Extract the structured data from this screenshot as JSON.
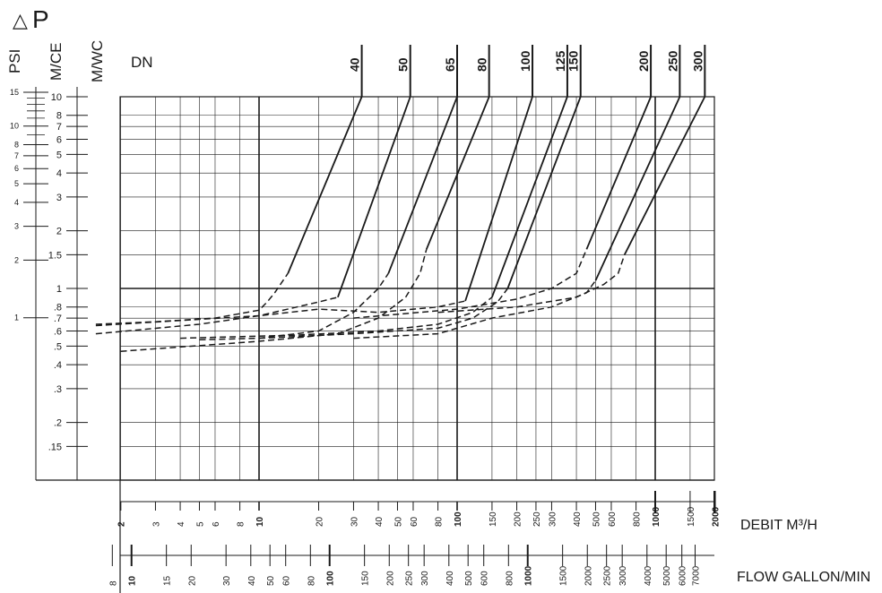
{
  "chart_data": {
    "type": "line",
    "title": "P",
    "title_symbol": "△",
    "dn_label": "DN",
    "grid": true,
    "xlabel_m3h": "DEBIT  M³/H",
    "xlabel_gpm": "FLOW GALLON/MIN",
    "xlim": [
      1.5,
      2000
    ],
    "ylim": [
      0.1,
      10
    ],
    "xscale": "log",
    "yscale": "log",
    "x_ticks_m3h": [
      "2",
      "3",
      "4",
      "5",
      "6",
      "8",
      "10",
      "20",
      "30",
      "40",
      "50",
      "60",
      "80",
      "100",
      "150",
      "200",
      "250",
      "300",
      "400",
      "500",
      "600",
      "800",
      "1000",
      "1500",
      "2000"
    ],
    "x_ticks_m3h_bold": [
      "2",
      "10",
      "100",
      "1000",
      "2000"
    ],
    "x_ticks_gpm": [
      "8",
      "10",
      "15",
      "20",
      "30",
      "40",
      "50",
      "60",
      "80",
      "100",
      "150",
      "200",
      "250",
      "300",
      "400",
      "500",
      "600",
      "800",
      "1000",
      "1500",
      "2000",
      "2500",
      "3000",
      "4000",
      "5000",
      "6000",
      "7000"
    ],
    "x_ticks_gpm_bold": [
      "10",
      "100",
      "1000"
    ],
    "axes": {
      "psi": {
        "label": "PSI",
        "ticks": [
          {
            "v": 15,
            "t": "15"
          },
          {
            "v": 10,
            "t": "10"
          },
          {
            "v": 8,
            "t": "8"
          },
          {
            "v": 7,
            "t": "7"
          },
          {
            "v": 6,
            "t": "6"
          },
          {
            "v": 5,
            "t": "5"
          },
          {
            "v": 4,
            "t": "4"
          },
          {
            "v": 3,
            "t": "3"
          },
          {
            "v": 2,
            "t": "2"
          },
          {
            "v": 1,
            "t": "1"
          }
        ]
      },
      "mce": {
        "label": "M/CE",
        "ticks": [
          {
            "v": 10,
            "t": "10"
          },
          {
            "v": 8,
            "t": "8"
          },
          {
            "v": 7,
            "t": "7"
          },
          {
            "v": 6,
            "t": "6"
          },
          {
            "v": 5,
            "t": "5"
          },
          {
            "v": 4,
            "t": "4"
          },
          {
            "v": 3,
            "t": "3"
          },
          {
            "v": 2,
            "t": "2"
          },
          {
            "v": 1.5,
            "t": "1.5"
          },
          {
            "v": 1,
            "t": "1"
          },
          {
            "v": 0.8,
            "t": ".8"
          },
          {
            "v": 0.7,
            "t": ".7"
          },
          {
            "v": 0.6,
            "t": ".6"
          },
          {
            "v": 0.5,
            "t": ".5"
          },
          {
            "v": 0.4,
            "t": ".4"
          },
          {
            "v": 0.3,
            "t": ".3"
          },
          {
            "v": 0.2,
            "t": ".2"
          },
          {
            "v": 0.15,
            "t": ".15"
          }
        ]
      },
      "mwc": {
        "label": "M/WC"
      }
    },
    "series": [
      {
        "name": "40",
        "dashed": [
          [
            1.5,
            0.65
          ],
          [
            3,
            0.67
          ],
          [
            6,
            0.7
          ],
          [
            10,
            0.77
          ],
          [
            11,
            0.85
          ],
          [
            12,
            0.95
          ],
          [
            14,
            1.2
          ]
        ],
        "solid": [
          [
            14,
            1.2
          ],
          [
            33,
            10
          ]
        ]
      },
      {
        "name": "50",
        "dashed": [
          [
            1.5,
            0.64
          ],
          [
            5,
            0.69
          ],
          [
            10,
            0.72
          ],
          [
            20,
            0.85
          ],
          [
            25,
            0.9
          ]
        ],
        "solid": [
          [
            25,
            0.9
          ],
          [
            58,
            10
          ]
        ]
      },
      {
        "name": "65",
        "dashed": [
          [
            5,
            0.54
          ],
          [
            10,
            0.55
          ],
          [
            20,
            0.6
          ],
          [
            30,
            0.75
          ],
          [
            40,
            1.0
          ],
          [
            45,
            1.2
          ]
        ],
        "solid": [
          [
            45,
            1.2
          ],
          [
            100,
            10
          ]
        ]
      },
      {
        "name": "80",
        "dashed": [
          [
            2,
            0.47
          ],
          [
            10,
            0.53
          ],
          [
            25,
            0.58
          ],
          [
            40,
            0.7
          ],
          [
            55,
            0.9
          ],
          [
            65,
            1.2
          ],
          [
            70,
            1.6
          ]
        ],
        "solid": [
          [
            70,
            1.6
          ],
          [
            145,
            10
          ]
        ]
      },
      {
        "name": "100",
        "dashed": [
          [
            1.5,
            0.58
          ],
          [
            5,
            0.65
          ],
          [
            10,
            0.72
          ],
          [
            20,
            0.78
          ],
          [
            40,
            0.75
          ],
          [
            80,
            0.8
          ],
          [
            110,
            0.86
          ]
        ],
        "solid": [
          [
            110,
            0.86
          ],
          [
            240,
            10
          ]
        ]
      },
      {
        "name": "125",
        "dashed": [
          [
            4,
            0.55
          ],
          [
            15,
            0.57
          ],
          [
            40,
            0.6
          ],
          [
            80,
            0.65
          ],
          [
            120,
            0.75
          ],
          [
            150,
            0.9
          ]
        ],
        "solid": [
          [
            150,
            0.9
          ],
          [
            360,
            10
          ]
        ]
      },
      {
        "name": "150",
        "dashed": [
          [
            10,
            0.55
          ],
          [
            30,
            0.58
          ],
          [
            80,
            0.62
          ],
          [
            120,
            0.7
          ],
          [
            160,
            0.85
          ],
          [
            180,
            1.0
          ]
        ],
        "solid": [
          [
            180,
            1.0
          ],
          [
            420,
            10
          ]
        ]
      },
      {
        "name": "200",
        "dashed": [
          [
            30,
            0.7
          ],
          [
            100,
            0.78
          ],
          [
            200,
            0.88
          ],
          [
            300,
            1.0
          ],
          [
            400,
            1.2
          ],
          [
            450,
            1.6
          ]
        ],
        "solid": [
          [
            450,
            1.6
          ],
          [
            950,
            10
          ]
        ]
      },
      {
        "name": "250",
        "dashed": [
          [
            30,
            0.55
          ],
          [
            80,
            0.58
          ],
          [
            150,
            0.7
          ],
          [
            300,
            0.8
          ],
          [
            450,
            0.95
          ],
          [
            500,
            1.1
          ]
        ],
        "solid": [
          [
            500,
            1.1
          ],
          [
            1330,
            10
          ]
        ]
      },
      {
        "name": "300",
        "dashed": [
          [
            80,
            0.75
          ],
          [
            200,
            0.8
          ],
          [
            400,
            0.9
          ],
          [
            550,
            1.05
          ],
          [
            650,
            1.2
          ],
          [
            700,
            1.5
          ]
        ],
        "solid": [
          [
            700,
            1.5
          ],
          [
            1780,
            10
          ]
        ]
      }
    ]
  }
}
